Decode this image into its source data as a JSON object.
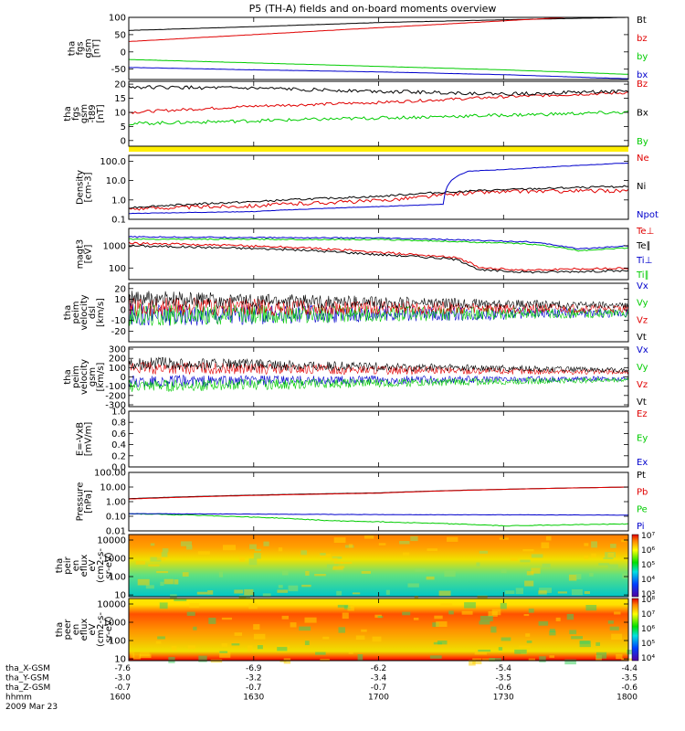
{
  "title": "P5 (TH-A) fields and on-board moments overview",
  "date_label": "2009 Mar 23",
  "footer": {
    "row_labels": [
      "tha_X-GSM",
      "tha_Y-GSM",
      "tha_Z-GSM",
      "hhmm"
    ],
    "columns": [
      {
        "x": "-7.6",
        "y": "-3.0",
        "z": "-0.7",
        "t": "1600"
      },
      {
        "x": "-6.9",
        "y": "-3.2",
        "z": "-0.7",
        "t": "1630"
      },
      {
        "x": "-6.2",
        "y": "-3.4",
        "z": "-0.7",
        "t": "1700"
      },
      {
        "x": "-5.4",
        "y": "-3.5",
        "z": "-0.6",
        "t": "1730"
      },
      {
        "x": "-4.4",
        "y": "-3.5",
        "z": "-0.6",
        "t": "1800"
      }
    ]
  },
  "colors": {
    "black": "#000000",
    "red": "#e00000",
    "green": "#00cc00",
    "blue": "#0000cc",
    "yellow": "#ffee00"
  },
  "chart_data": [
    {
      "id": "fgs",
      "type": "line",
      "ylabel": [
        "tha",
        "fgs",
        "gsm",
        "[nT]"
      ],
      "ylim": [
        -80,
        100
      ],
      "ticks": [
        "100",
        "50",
        "0",
        "-50"
      ],
      "series": [
        {
          "name": "Bt",
          "color": "black",
          "values": [
            [
              0,
              62
            ],
            [
              0.25,
              73
            ],
            [
              0.5,
              85
            ],
            [
              0.75,
              93
            ],
            [
              1,
              100
            ]
          ],
          "noise": 0.3
        },
        {
          "name": "bz",
          "color": "red",
          "values": [
            [
              0,
              30
            ],
            [
              0.25,
              50
            ],
            [
              0.5,
              70
            ],
            [
              0.75,
              90
            ],
            [
              0.88,
              100
            ]
          ],
          "noise": 0.3
        },
        {
          "name": "by",
          "color": "green",
          "values": [
            [
              0,
              -22
            ],
            [
              0.25,
              -32
            ],
            [
              0.5,
              -42
            ],
            [
              0.75,
              -52
            ],
            [
              1,
              -65
            ]
          ],
          "noise": 0.3
        },
        {
          "name": "bx",
          "color": "blue",
          "values": [
            [
              0,
              -45
            ],
            [
              0.25,
              -52
            ],
            [
              0.5,
              -58
            ],
            [
              0.75,
              -66
            ],
            [
              1,
              -78
            ]
          ],
          "noise": 0.3
        }
      ]
    },
    {
      "id": "fgs_dt",
      "type": "line",
      "ylabel": [
        "tha",
        "fgs",
        "gsm",
        "-t89",
        "[nT]"
      ],
      "ylim": [
        -2,
        21
      ],
      "ticks": [
        "20",
        "15",
        "10",
        "5",
        "0"
      ],
      "series": [
        {
          "name": "Bz",
          "color": "red",
          "values": [
            [
              0,
              10
            ],
            [
              0.25,
              12.2
            ],
            [
              0.5,
              13.5
            ],
            [
              0.75,
              15.5
            ],
            [
              1,
              17
            ]
          ],
          "noise": 0.5
        },
        {
          "name": "Bx",
          "color": "black",
          "values": [
            [
              0,
              19
            ],
            [
              0.25,
              18.5
            ],
            [
              0.5,
              17.5
            ],
            [
              0.75,
              16.5
            ],
            [
              1,
              17.5
            ]
          ],
          "noise": 0.6
        },
        {
          "name": "By",
          "color": "green",
          "values": [
            [
              0,
              6
            ],
            [
              0.25,
              7
            ],
            [
              0.5,
              8
            ],
            [
              0.75,
              9
            ],
            [
              1,
              10
            ]
          ],
          "noise": 0.6
        }
      ]
    },
    {
      "id": "density",
      "type": "line",
      "ylabel": [
        "Density",
        "[cm-3]"
      ],
      "log": true,
      "ylim": [
        0.1,
        200
      ],
      "ticks": [
        "100.0",
        "10.0",
        "1.0",
        "0.1"
      ],
      "series": [
        {
          "name": "Ne",
          "color": "red",
          "values": [
            [
              0,
              0.35
            ],
            [
              0.25,
              0.5
            ],
            [
              0.5,
              0.9
            ],
            [
              0.6,
              1.5
            ],
            [
              0.7,
              2.5
            ],
            [
              0.8,
              2.8
            ],
            [
              1,
              3.0
            ]
          ],
          "noise": 0.4
        },
        {
          "name": "Ni",
          "color": "black",
          "values": [
            [
              0,
              0.4
            ],
            [
              0.25,
              0.8
            ],
            [
              0.5,
              1.5
            ],
            [
              0.7,
              3
            ],
            [
              1,
              5
            ]
          ],
          "noise": 0.2
        },
        {
          "name": "Npot",
          "color": "blue",
          "values": [
            [
              0,
              0.2
            ],
            [
              0.25,
              0.25
            ],
            [
              0.5,
              0.45
            ],
            [
              0.63,
              0.6
            ],
            [
              0.68,
              30
            ],
            [
              0.78,
              40
            ],
            [
              0.9,
              60
            ],
            [
              1,
              80
            ]
          ],
          "noise": 0.05
        }
      ]
    },
    {
      "id": "temp",
      "type": "line",
      "ylabel": [
        "magt3",
        "[eV]"
      ],
      "log": true,
      "ylim": [
        30,
        6000
      ],
      "ticks": [
        "1000",
        "100"
      ],
      "series": [
        {
          "name": "Te⊥",
          "color": "red",
          "values": [
            [
              0,
              1300
            ],
            [
              0.3,
              900
            ],
            [
              0.5,
              500
            ],
            [
              0.65,
              300
            ],
            [
              0.7,
              100
            ],
            [
              0.8,
              80
            ],
            [
              0.9,
              90
            ],
            [
              1,
              100
            ]
          ],
          "noise": 0.2
        },
        {
          "name": "Te∥",
          "color": "black",
          "values": [
            [
              0,
              1000
            ],
            [
              0.3,
              700
            ],
            [
              0.5,
              400
            ],
            [
              0.65,
              250
            ],
            [
              0.7,
              80
            ],
            [
              0.8,
              65
            ],
            [
              0.9,
              70
            ],
            [
              1,
              75
            ]
          ],
          "noise": 0.2
        },
        {
          "name": "Ti⊥",
          "color": "blue",
          "values": [
            [
              0,
              2500
            ],
            [
              0.5,
              2200
            ],
            [
              0.8,
              1500
            ],
            [
              0.9,
              700
            ],
            [
              1,
              1000
            ]
          ],
          "noise": 0.1
        },
        {
          "name": "Ti∥",
          "color": "green",
          "values": [
            [
              0,
              2000
            ],
            [
              0.5,
              1900
            ],
            [
              0.8,
              1200
            ],
            [
              0.9,
              600
            ],
            [
              1,
              800
            ]
          ],
          "noise": 0.1
        }
      ]
    },
    {
      "id": "vel_dsl",
      "type": "line",
      "ylabel": [
        "tha",
        "peim",
        "velocity",
        "dsl",
        "[km/s]"
      ],
      "ylim": [
        -30,
        25
      ],
      "ticks": [
        "20",
        "10",
        "0",
        "-10",
        "-20"
      ],
      "series": [
        {
          "name": "Vx",
          "color": "blue",
          "values": [
            [
              0,
              -5
            ],
            [
              1,
              -3
            ]
          ],
          "noise": 8,
          "decay": true
        },
        {
          "name": "Vy",
          "color": "green",
          "values": [
            [
              0,
              -5
            ],
            [
              1,
              -3
            ]
          ],
          "noise": 8,
          "decay": true
        },
        {
          "name": "Vz",
          "color": "red",
          "values": [
            [
              0,
              3
            ],
            [
              1,
              1
            ]
          ],
          "noise": 7,
          "decay": true
        },
        {
          "name": "Vt",
          "color": "black",
          "values": [
            [
              0,
              10
            ],
            [
              1,
              4
            ]
          ],
          "noise": 6,
          "decay": true
        }
      ]
    },
    {
      "id": "vel_gsm",
      "type": "line",
      "ylabel": [
        "tha",
        "peim",
        "velocity",
        "gsm",
        "[km/s]"
      ],
      "ylim": [
        -320,
        320
      ],
      "ticks": [
        "300",
        "200",
        "100",
        "0",
        "-100",
        "-200",
        "-300"
      ],
      "series": [
        {
          "name": "Vx",
          "color": "blue",
          "values": [
            [
              0,
              -50
            ],
            [
              1,
              -20
            ]
          ],
          "noise": 50,
          "decay": true
        },
        {
          "name": "Vy",
          "color": "green",
          "values": [
            [
              0,
              -100
            ],
            [
              1,
              -30
            ]
          ],
          "noise": 50,
          "decay": true
        },
        {
          "name": "Vz",
          "color": "red",
          "values": [
            [
              0,
              100
            ],
            [
              1,
              50
            ]
          ],
          "noise": 50,
          "decay": true
        },
        {
          "name": "Vt",
          "color": "black",
          "values": [
            [
              0,
              150
            ],
            [
              1,
              70
            ]
          ],
          "noise": 50,
          "decay": true
        }
      ]
    },
    {
      "id": "efield",
      "type": "line",
      "ylabel": [
        "E=-VxB",
        "[mV/m]"
      ],
      "ylim": [
        0,
        1
      ],
      "ticks": [
        "1.0",
        "0.8",
        "0.6",
        "0.4",
        "0.2",
        "0.0"
      ],
      "series": [
        {
          "name": "Ez",
          "color": "red",
          "values": []
        },
        {
          "name": "Ey",
          "color": "green",
          "values": []
        },
        {
          "name": "Ex",
          "color": "blue",
          "values": []
        }
      ]
    },
    {
      "id": "pressure",
      "type": "line",
      "ylabel": [
        "Pressure",
        "[nPa]"
      ],
      "log": true,
      "ylim": [
        0.01,
        100
      ],
      "ticks": [
        "100.00",
        "10.00",
        "1.00",
        "0.10",
        "0.01"
      ],
      "series": [
        {
          "name": "Pt",
          "color": "black",
          "values": [
            [
              0,
              1.6
            ],
            [
              0.5,
              4
            ],
            [
              1,
              10
            ]
          ],
          "noise": 0.02
        },
        {
          "name": "Pb",
          "color": "red",
          "values": [
            [
              0,
              1.5
            ],
            [
              0.5,
              3.8
            ],
            [
              1,
              10
            ]
          ],
          "noise": 0.02
        },
        {
          "name": "Pe",
          "color": "green",
          "values": [
            [
              0,
              0.15
            ],
            [
              0.4,
              0.05
            ],
            [
              0.75,
              0.022
            ],
            [
              1,
              0.03
            ]
          ],
          "noise": 0.1
        },
        {
          "name": "Pi",
          "color": "blue",
          "values": [
            [
              0,
              0.15
            ],
            [
              0.5,
              0.13
            ],
            [
              1,
              0.12
            ]
          ],
          "noise": 0.05
        }
      ]
    },
    {
      "id": "peir_spec",
      "type": "heatmap",
      "ylabel": [
        "tha",
        "peir",
        "en",
        "eflux",
        "eV",
        "(cm2-s-",
        "sr-eV)"
      ],
      "log": true,
      "ylim": [
        8,
        20000
      ],
      "ticks": [
        "10000",
        "1000",
        "100",
        "10"
      ],
      "colorbar": {
        "labels": [
          "10⁷",
          "10⁶",
          "10⁵",
          "10⁴",
          "10³"
        ]
      }
    },
    {
      "id": "peer_spec",
      "type": "heatmap",
      "ylabel": [
        "tha",
        "peer",
        "en",
        "eflux",
        "eV",
        "(cm2-s-",
        "sr-eV)"
      ],
      "log": true,
      "ylim": [
        8,
        20000
      ],
      "ticks": [
        "10000",
        "1000",
        "100",
        "10"
      ],
      "colorbar": {
        "labels": [
          "10⁸",
          "10⁷",
          "10⁶",
          "10⁵",
          "10⁴"
        ]
      }
    }
  ]
}
